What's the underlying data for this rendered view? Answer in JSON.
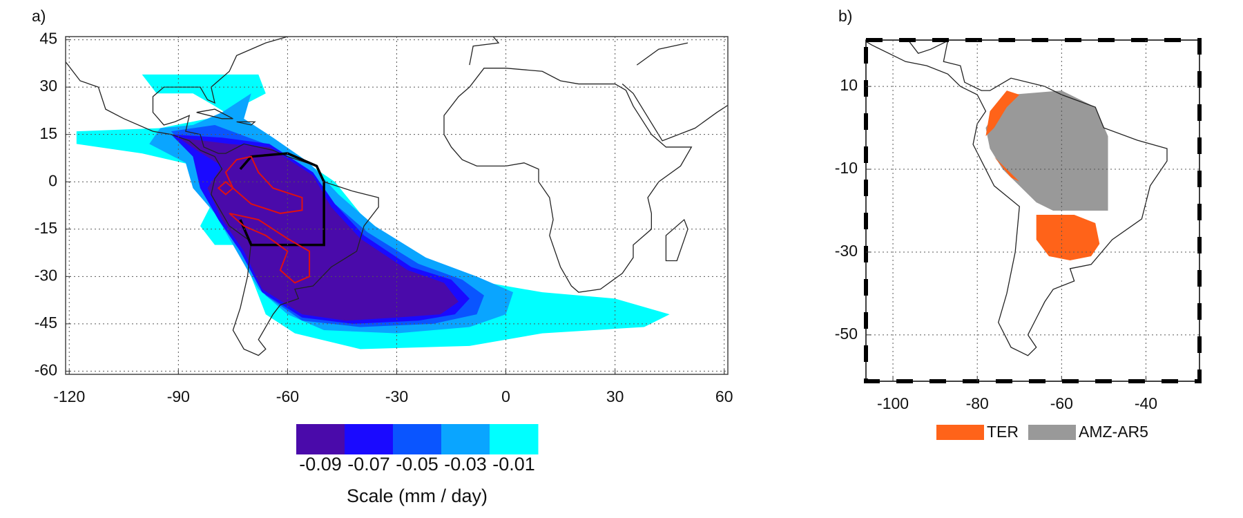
{
  "panels": [
    {
      "label": "a)",
      "xlim": [
        -121,
        61
      ],
      "ylim": [
        -61,
        46
      ],
      "xticks": [
        -120,
        -90,
        -60,
        -30,
        0,
        30,
        60
      ],
      "yticks": [
        45,
        30,
        15,
        0,
        -15,
        -30,
        -45,
        -60
      ],
      "colorbar": {
        "ticks": [
          -0.09,
          -0.07,
          -0.05,
          -0.03,
          -0.01
        ],
        "colors": [
          "#4a0aaa",
          "#1a0aff",
          "#0a55ff",
          "#0aa5ff",
          "#00ffff"
        ],
        "label": "Scale (mm / day)"
      }
    },
    {
      "label": "b)",
      "xlim": [
        -106.4,
        -27.3
      ],
      "ylim": [
        -61.2,
        21.2
      ],
      "xticks": [
        -100,
        -80,
        -60,
        -40
      ],
      "yticks": [
        10,
        -10,
        -30,
        -50
      ],
      "legend": [
        {
          "name": "TER",
          "color": "#ff6319"
        },
        {
          "name": "AMZ-AR5",
          "color": "#999999"
        }
      ]
    }
  ]
}
